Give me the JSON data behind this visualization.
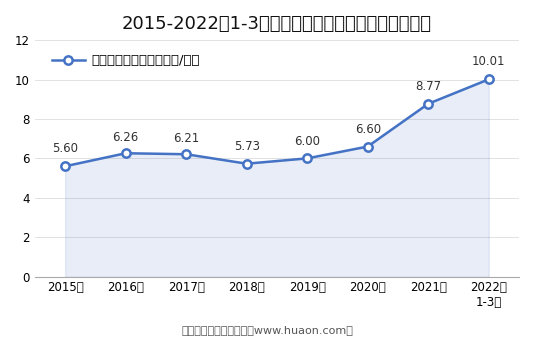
{
  "title": "2015-2022年1-3月大连商品交易所豆油期货成交均价",
  "legend_label": "豆油期货成交均价（万元/手）",
  "x_labels": [
    "2015年",
    "2016年",
    "2017年",
    "2018年",
    "2019年",
    "2020年",
    "2021年",
    "2022年\n1-3月"
  ],
  "x_values": [
    0,
    1,
    2,
    3,
    4,
    5,
    6,
    7
  ],
  "y_values": [
    5.6,
    6.26,
    6.21,
    5.73,
    6.0,
    6.6,
    8.77,
    10.01
  ],
  "y_labels": [
    "5.60",
    "6.26",
    "6.21",
    "5.73",
    "6.00",
    "6.60",
    "8.77",
    "10.01"
  ],
  "ylim": [
    0,
    12
  ],
  "yticks": [
    0,
    2,
    4,
    6,
    8,
    10,
    12
  ],
  "line_color": "#4472C4",
  "fill_color": "#4472C4",
  "fill_alpha": 0.12,
  "bg_color": "#FFFFFF",
  "footer": "制图：华经产业研究院（www.huaon.com）",
  "title_fontsize": 13,
  "label_fontsize": 8.5,
  "legend_fontsize": 9.5,
  "tick_fontsize": 8.5,
  "footer_fontsize": 8
}
